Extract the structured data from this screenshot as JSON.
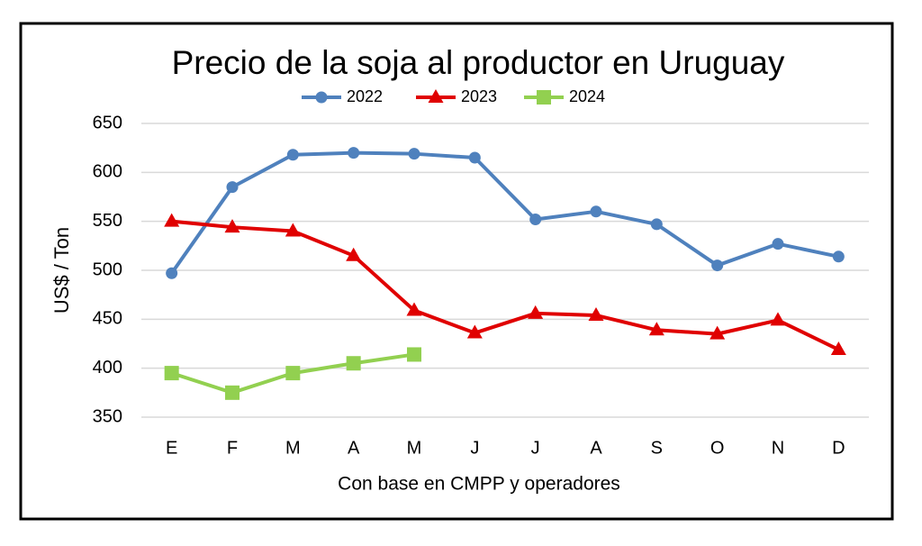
{
  "chart_data": {
    "type": "line",
    "title": "Precio de la soja al productor en Uruguay",
    "x_label": "Con base en CMPP y operadores",
    "y_label": "US$ / Ton",
    "categories": [
      "E",
      "F",
      "M",
      "A",
      "M",
      "J",
      "J",
      "A",
      "S",
      "O",
      "N",
      "D"
    ],
    "series": [
      {
        "name": "2022",
        "color": "#4f81bd",
        "marker": "circle",
        "values": [
          497,
          585,
          618,
          620,
          619,
          615,
          552,
          560,
          547,
          505,
          527,
          514
        ]
      },
      {
        "name": "2023",
        "color": "#e00000",
        "marker": "triangle",
        "values": [
          550,
          544,
          540,
          515,
          459,
          436,
          456,
          454,
          439,
          435,
          449,
          419
        ]
      },
      {
        "name": "2024",
        "color": "#92d050",
        "marker": "square",
        "values": [
          395,
          375,
          395,
          405,
          414,
          null,
          null,
          null,
          null,
          null,
          null,
          null
        ]
      }
    ],
    "ylim": [
      350,
      650
    ],
    "yticks": [
      350,
      400,
      450,
      500,
      550,
      600,
      650
    ],
    "grid": true,
    "legend": "top"
  }
}
